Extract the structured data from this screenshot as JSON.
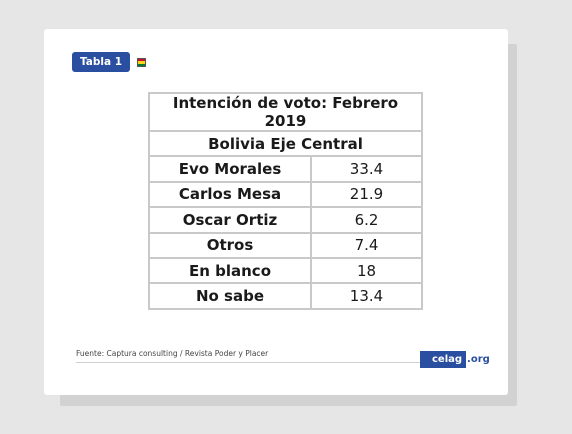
{
  "tag_label": "Tabla 1",
  "flag_colors": [
    "#c8102e",
    "#f9d616",
    "#007a33"
  ],
  "table": {
    "title": "Intención de voto: Febrero 2019",
    "subtitle": "Bolivia Eje Central",
    "rows": [
      {
        "label": "Evo Morales",
        "value": "33.4"
      },
      {
        "label": "Carlos Mesa",
        "value": "21.9"
      },
      {
        "label": "Oscar Ortiz",
        "value": "6.2"
      },
      {
        "label": "Otros",
        "value": "7.4"
      },
      {
        "label": "En blanco",
        "value": "18"
      },
      {
        "label": "No sabe",
        "value": "13.4"
      }
    ]
  },
  "footer": {
    "source": "Fuente: Captura consulting / Revista Poder y Placer",
    "logo_main": "celag",
    "logo_domain": ".org"
  }
}
